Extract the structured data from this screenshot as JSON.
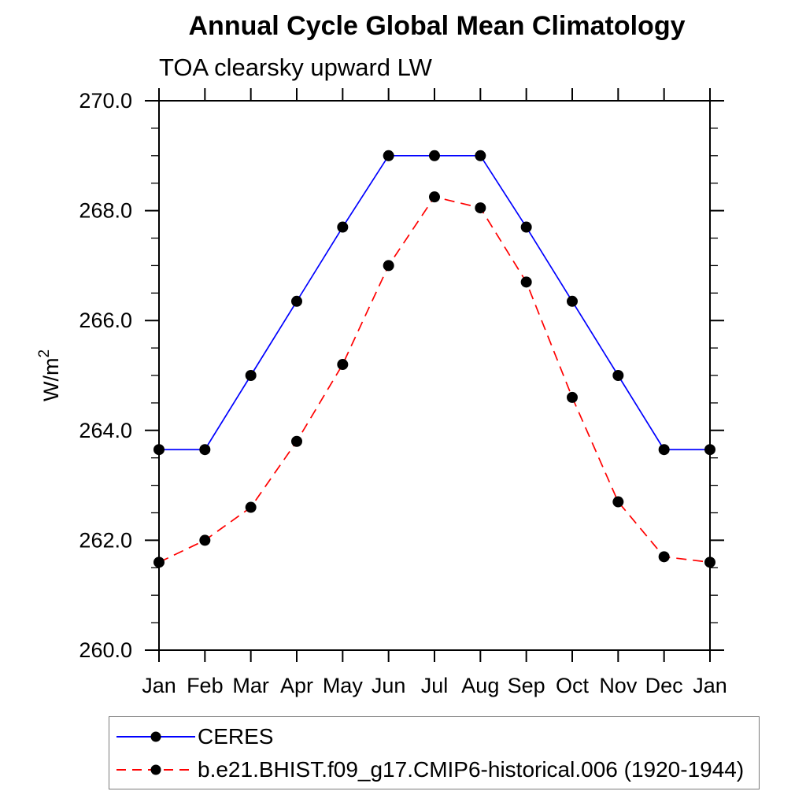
{
  "chart_data": {
    "type": "line",
    "title": "Annual Cycle Global Mean Climatology",
    "subtitle": "TOA clearsky upward LW",
    "ylabel": "W/m²",
    "xlabel": "",
    "categories": [
      "Jan",
      "Feb",
      "Mar",
      "Apr",
      "May",
      "Jun",
      "Jul",
      "Aug",
      "Sep",
      "Oct",
      "Nov",
      "Dec",
      "Jan"
    ],
    "ylim": [
      260.0,
      270.0
    ],
    "ytick_step": 2.0,
    "ytick_minor_step": 0.5,
    "ytick_decimals": 1,
    "grid": false,
    "legend_position": "bottom",
    "axis_color": "#000000",
    "marker_color": "#000000",
    "series": [
      {
        "name": "CERES",
        "color": "#0000ff",
        "style": "solid",
        "marker": "circle",
        "values": [
          263.65,
          263.65,
          265.0,
          266.35,
          267.7,
          269.0,
          269.0,
          269.0,
          267.7,
          266.35,
          265.0,
          263.65,
          263.65
        ]
      },
      {
        "name": "b.e21.BHIST.f09_g17.CMIP6-historical.006 (1920-1944)",
        "color": "#ff0000",
        "style": "dashed",
        "marker": "circle",
        "values": [
          261.6,
          262.0,
          262.6,
          263.8,
          265.2,
          267.0,
          268.25,
          268.05,
          266.7,
          264.6,
          262.7,
          261.7,
          261.6
        ]
      }
    ]
  }
}
